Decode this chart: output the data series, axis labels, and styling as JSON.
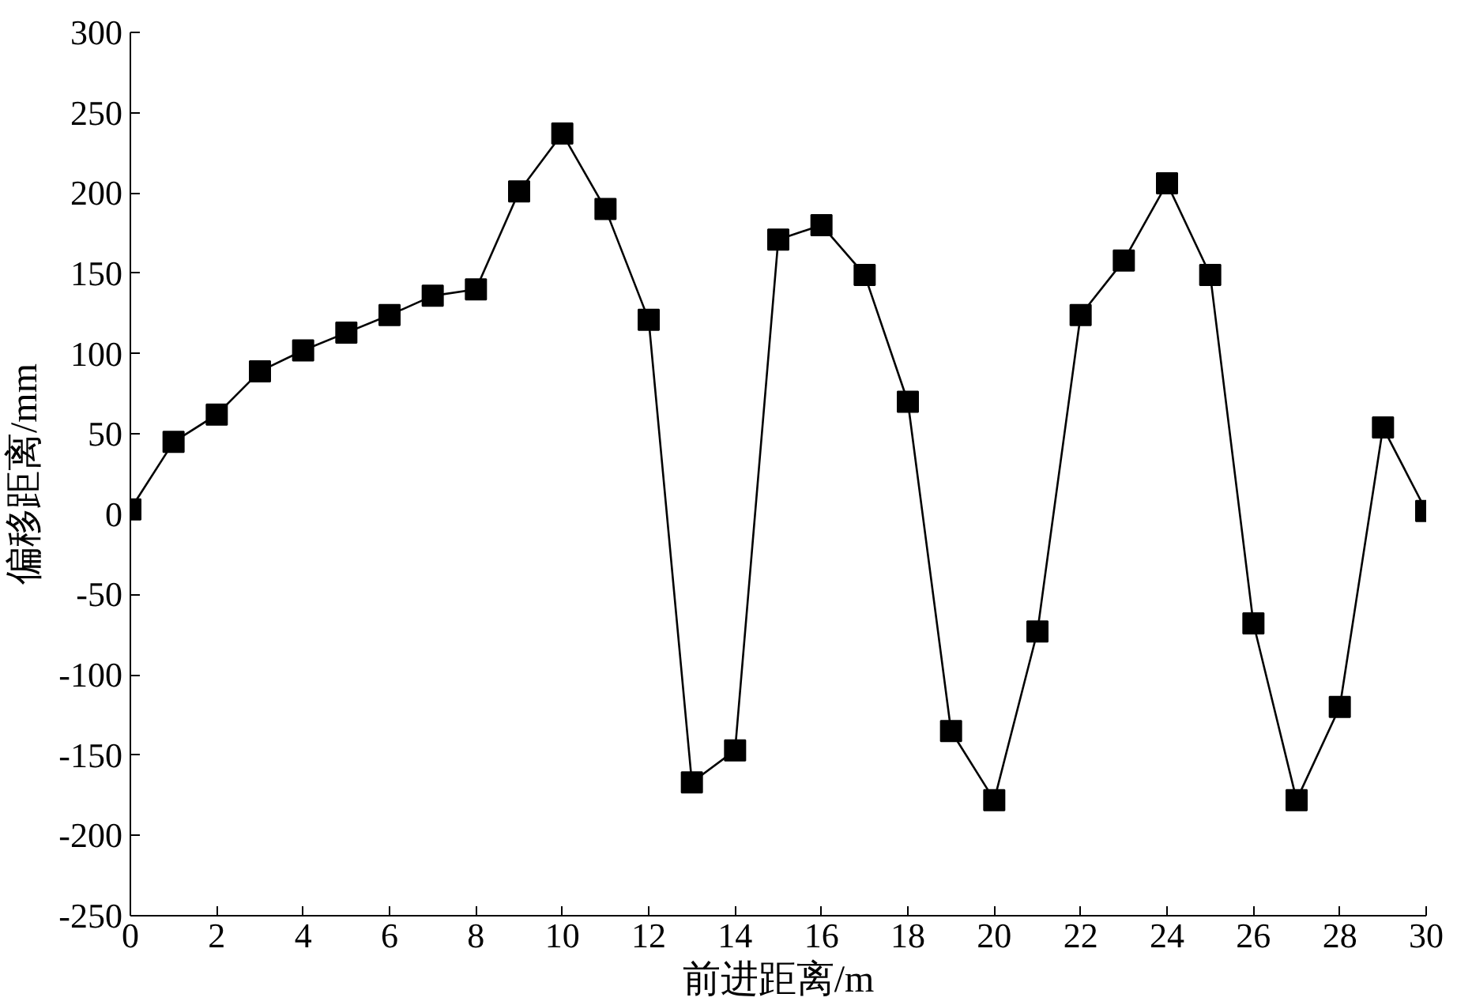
{
  "chart_data": {
    "type": "line",
    "xlabel": "前进距离/m",
    "ylabel": "偏移距离/mm",
    "x": [
      0,
      1,
      2,
      3,
      4,
      5,
      6,
      7,
      8,
      9,
      10,
      11,
      12,
      13,
      14,
      15,
      16,
      17,
      18,
      19,
      20,
      21,
      22,
      23,
      24,
      25,
      26,
      27,
      28,
      29,
      30
    ],
    "series": [
      {
        "color": "#000000",
        "values": [
          3,
          45,
          62,
          89,
          102,
          113,
          124,
          136,
          140,
          201,
          237,
          190,
          121,
          -167,
          -147,
          171,
          180,
          149,
          70,
          -135,
          -178,
          -73,
          124,
          158,
          206,
          149,
          -68,
          -178,
          -120,
          54,
          2
        ]
      }
    ],
    "xlim": [
      0,
      30
    ],
    "xticks": [
      0,
      2,
      4,
      6,
      8,
      10,
      12,
      14,
      16,
      18,
      20,
      22,
      24,
      26,
      28,
      30
    ],
    "ylim": [
      -250,
      300
    ],
    "yticks": [
      -250,
      -200,
      -150,
      -100,
      -50,
      0,
      50,
      100,
      150,
      200,
      250,
      300
    ],
    "marker": "square",
    "line_style": "solid",
    "grid": false
  }
}
